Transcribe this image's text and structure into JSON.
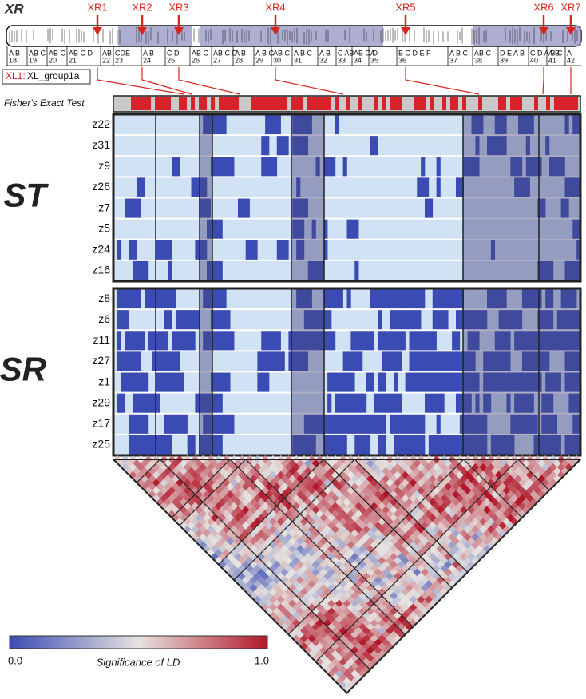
{
  "header": {
    "title": "XR"
  },
  "markers": [
    "XR1",
    "XR2",
    "XR3",
    "XR4",
    "XR5",
    "XR6",
    "XR7"
  ],
  "bands": [
    {
      "number": 18,
      "letters": "A B"
    },
    {
      "number": 19,
      "letters": "AB C"
    },
    {
      "number": 20,
      "letters": "AB C"
    },
    {
      "number": 21,
      "letters": "AB C D"
    },
    {
      "number": 22,
      "letters": "AB"
    },
    {
      "number": 23,
      "letters": "CDE"
    },
    {
      "number": 24,
      "letters": "A B"
    },
    {
      "number": 25,
      "letters": "C D"
    },
    {
      "number": 26,
      "letters": "AB C"
    },
    {
      "number": 27,
      "letters": "AB C D"
    },
    {
      "number": 28,
      "letters": "A B"
    },
    {
      "number": 29,
      "letters": "A B C"
    },
    {
      "number": 30,
      "letters": "AB C"
    },
    {
      "number": 31,
      "letters": "A B C"
    },
    {
      "number": 32,
      "letters": "A B"
    },
    {
      "number": 33,
      "letters": "C AB"
    },
    {
      "number": 34,
      "letters": "AB C D"
    },
    {
      "number": 35,
      "letters": "A"
    },
    {
      "number": 36,
      "letters": "B C D E F"
    },
    {
      "number": 37,
      "letters": "A B C"
    },
    {
      "number": 38,
      "letters": "AB C"
    },
    {
      "number": 39,
      "letters": "D E A B"
    },
    {
      "number": 40,
      "letters": "C D A B C"
    },
    {
      "number": 41,
      "letters": "A B"
    },
    {
      "number": 42,
      "letters": "A"
    }
  ],
  "group_label": {
    "key": "XL1:",
    "name": "XL_group1a"
  },
  "fisher": {
    "label": "Fisher's Exact Test"
  },
  "panels": [
    {
      "title": "ST",
      "rows": [
        "z22",
        "z31",
        "z9",
        "z26",
        "z7",
        "z5",
        "z24",
        "z16"
      ]
    },
    {
      "title": "SR",
      "rows": [
        "z8",
        "z6",
        "z11",
        "z27",
        "z1",
        "z29",
        "z17",
        "z25"
      ]
    }
  ],
  "legend": {
    "min": "0.0",
    "title": "Significance of LD",
    "max": "1.0"
  }
}
